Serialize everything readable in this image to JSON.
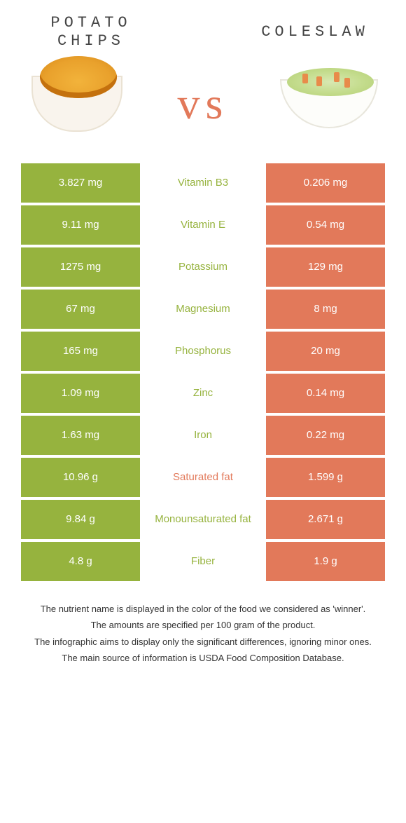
{
  "colors": {
    "left": "#96b33e",
    "right": "#e2795a",
    "mid_bg": "#ffffff",
    "vs": "#e2795a"
  },
  "food_left": {
    "title_line1": "Potato",
    "title_line2": "chips"
  },
  "food_right": {
    "title": "Coleslaw"
  },
  "vs_label": "vs",
  "rows": [
    {
      "left": "3.827 mg",
      "label": "Vitamin B3",
      "right": "0.206 mg",
      "label_side": "left"
    },
    {
      "left": "9.11 mg",
      "label": "Vitamin E",
      "right": "0.54 mg",
      "label_side": "left"
    },
    {
      "left": "1275 mg",
      "label": "Potassium",
      "right": "129 mg",
      "label_side": "left"
    },
    {
      "left": "67 mg",
      "label": "Magnesium",
      "right": "8 mg",
      "label_side": "left"
    },
    {
      "left": "165 mg",
      "label": "Phosphorus",
      "right": "20 mg",
      "label_side": "left"
    },
    {
      "left": "1.09 mg",
      "label": "Zinc",
      "right": "0.14 mg",
      "label_side": "left"
    },
    {
      "left": "1.63 mg",
      "label": "Iron",
      "right": "0.22 mg",
      "label_side": "left"
    },
    {
      "left": "10.96 g",
      "label": "Saturated fat",
      "right": "1.599 g",
      "label_side": "right"
    },
    {
      "left": "9.84 g",
      "label": "Monounsaturated fat",
      "right": "2.671 g",
      "label_side": "left"
    },
    {
      "left": "4.8 g",
      "label": "Fiber",
      "right": "1.9 g",
      "label_side": "left"
    }
  ],
  "footnotes": [
    "The nutrient name is displayed in the color of the food we considered as 'winner'.",
    "The amounts are specified per 100 gram of the product.",
    "The infographic aims to display only the significant differences, ignoring minor ones.",
    "The main source of information is USDA Food Composition Database."
  ]
}
